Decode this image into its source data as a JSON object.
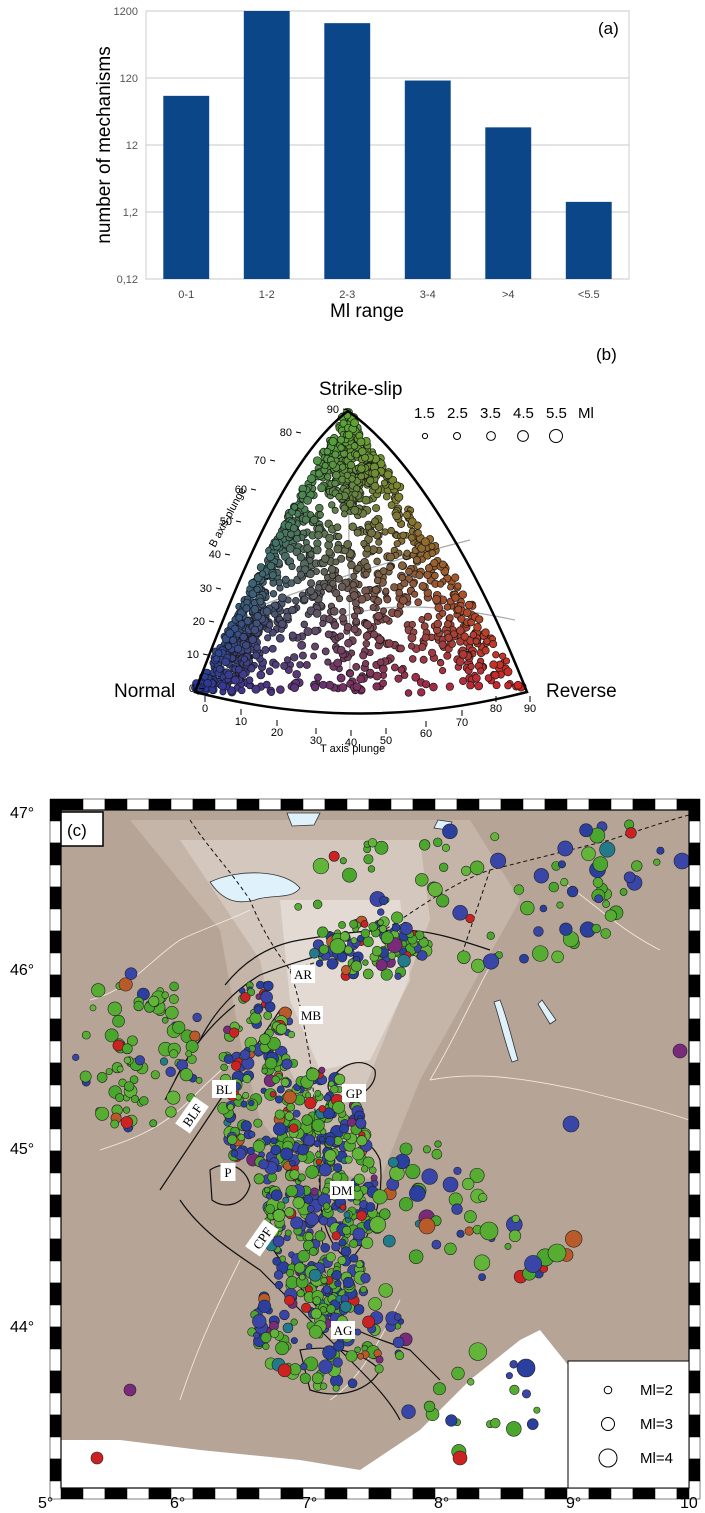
{
  "panel_a": {
    "label": "(a)",
    "ylabel": "number of mechanisms",
    "xlabel": "Ml range"
  },
  "panel_b": {
    "label": "(b)",
    "corner_top": "Strike-slip",
    "corner_left": "Normal",
    "corner_right": "Reverse",
    "left_axis_title": "B axis plunge",
    "bottom_axis_title": "T axis plunge",
    "size_legend_values": [
      "1.5",
      "2.5",
      "3.5",
      "4.5",
      "5.5"
    ],
    "size_legend_unit": "Ml",
    "b_ticks": [
      "0",
      "10",
      "20",
      "30",
      "40",
      "50",
      "60",
      "70",
      "80",
      "90"
    ],
    "t_ticks": [
      "0",
      "10",
      "20",
      "30",
      "40",
      "50",
      "60",
      "70",
      "80",
      "90"
    ]
  },
  "panel_c": {
    "label": "(c)",
    "lat_ticks": [
      "47°",
      "46°",
      "45°",
      "44°"
    ],
    "lon_ticks": [
      "5°",
      "6°",
      "7°",
      "8°",
      "9°",
      "10"
    ],
    "places": [
      "AR",
      "MB",
      "GP",
      "BL",
      "BLF",
      "P",
      "DM",
      "CPF",
      "AG"
    ],
    "legend": [
      "Ml=2",
      "Ml=3",
      "Ml=4"
    ],
    "colors": {
      "land": "#b6a596",
      "sea": "#ffffff",
      "lake": "#dff2fb",
      "normal": "#3344aa",
      "strike": "#55aa33",
      "reverse": "#d22222"
    }
  },
  "chart_data": [
    {
      "type": "bar",
      "title": "",
      "xlabel": "Ml range",
      "ylabel": "number of mechanisms",
      "yscale": "log",
      "ylim": [
        0.12,
        1200
      ],
      "yticks": [
        "1200",
        "120",
        "12",
        "1,2",
        "0,12"
      ],
      "categories": [
        "0-1",
        "1-2",
        "2-3",
        "3-4",
        ">4",
        "<5.5"
      ],
      "values": [
        65,
        1200,
        790,
        110,
        22,
        1.7
      ],
      "color": "#0a4688",
      "grid": true
    },
    {
      "type": "scatter",
      "title": "",
      "xlabel": "T axis plunge",
      "ylabel": "B axis plunge",
      "projection": "ternary (Kaverina)",
      "corners": [
        "Normal",
        "Strike-slip",
        "Reverse"
      ],
      "xlim": [
        0,
        90
      ],
      "ylim": [
        0,
        90
      ],
      "size_legend": [
        1.5,
        2.5,
        3.5,
        4.5,
        5.5
      ]
    }
  ]
}
